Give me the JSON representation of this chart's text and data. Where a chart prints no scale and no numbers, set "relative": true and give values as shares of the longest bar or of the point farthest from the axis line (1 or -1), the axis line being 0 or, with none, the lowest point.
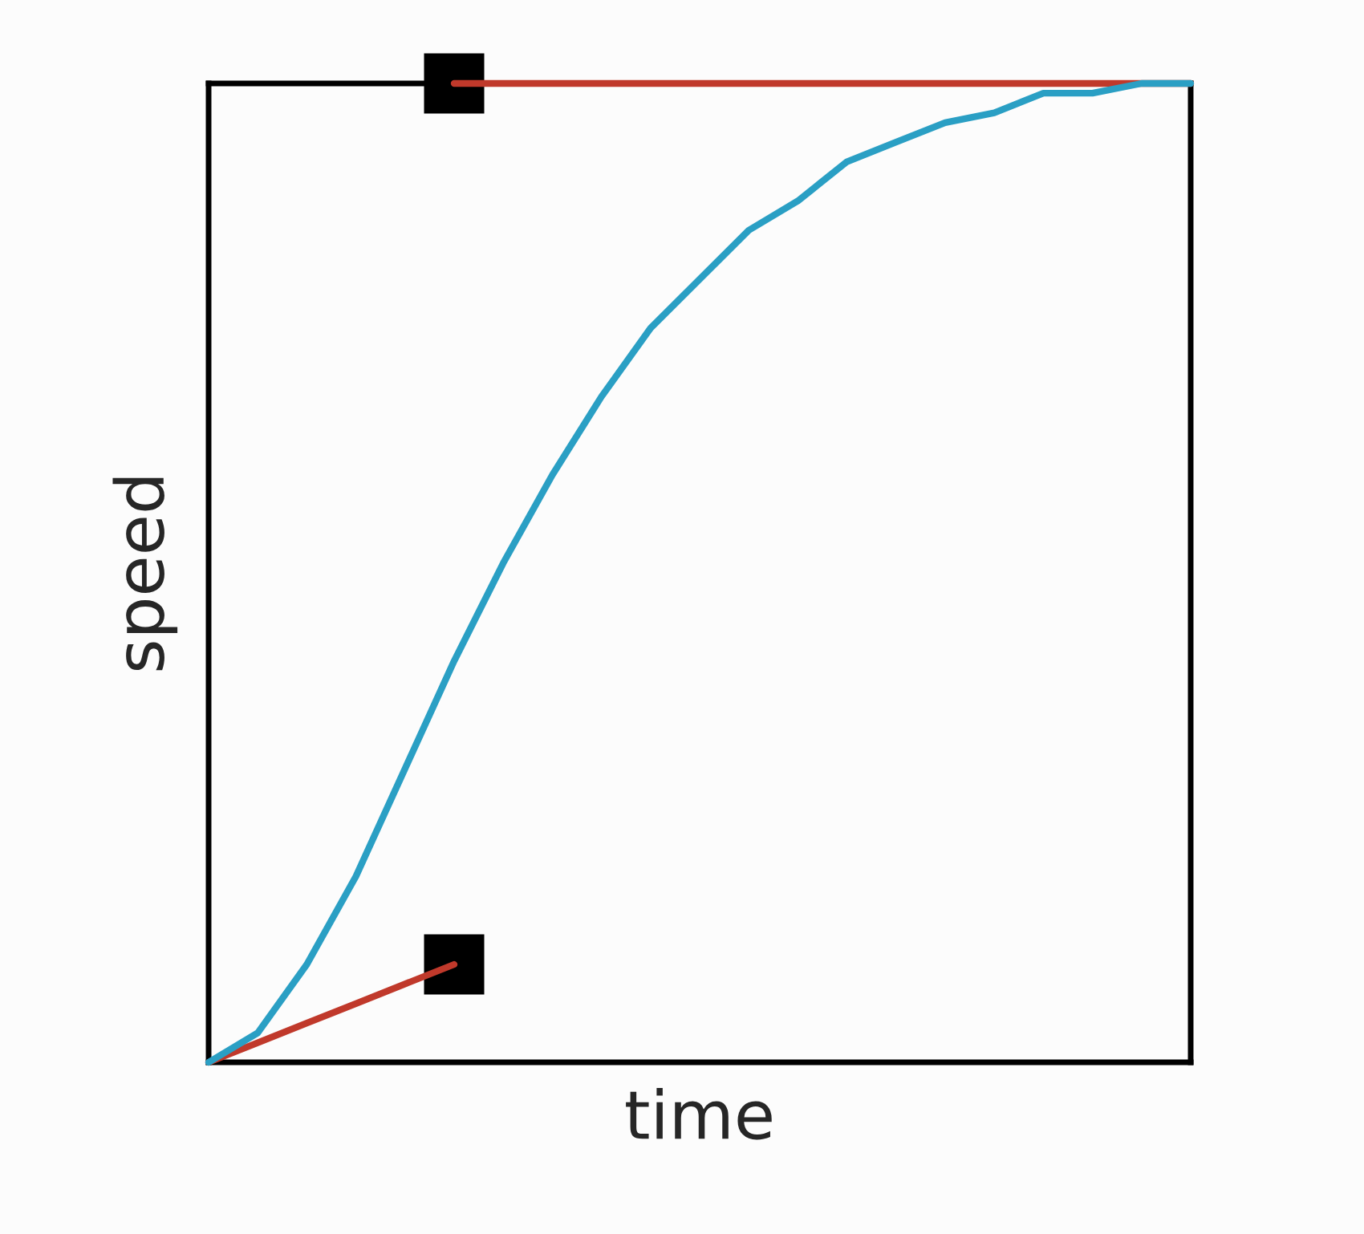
{
  "chart_data": {
    "type": "line",
    "relative": true,
    "xlabel": "time",
    "ylabel": "speed",
    "categories": [
      null,
      null,
      null,
      null,
      null,
      null,
      null,
      null,
      null,
      null,
      null,
      null,
      null,
      null,
      null,
      null,
      null,
      null,
      null,
      null,
      null
    ],
    "series": [
      {
        "color": "#c0392b",
        "values": [
          0,
          0.02,
          0.04,
          0.06,
          0.08,
          0.1,
          null,
          null,
          null,
          null,
          null,
          null,
          null,
          null,
          null,
          null,
          null,
          null,
          null,
          null,
          null
        ]
      },
      {
        "color": "#c0392b",
        "values": [
          null,
          null,
          null,
          null,
          null,
          1,
          1,
          1,
          1,
          1,
          1,
          1,
          1,
          1,
          1,
          1,
          1,
          1,
          1,
          1,
          1
        ]
      },
      {
        "color": "#2a9fc4",
        "values": [
          0,
          0.03,
          0.1,
          0.19,
          0.3,
          0.41,
          0.51,
          0.6,
          0.68,
          0.75,
          0.8,
          0.85,
          0.88,
          0.92,
          0.94,
          0.96,
          0.97,
          0.99,
          0.99,
          1,
          1
        ]
      }
    ]
  }
}
